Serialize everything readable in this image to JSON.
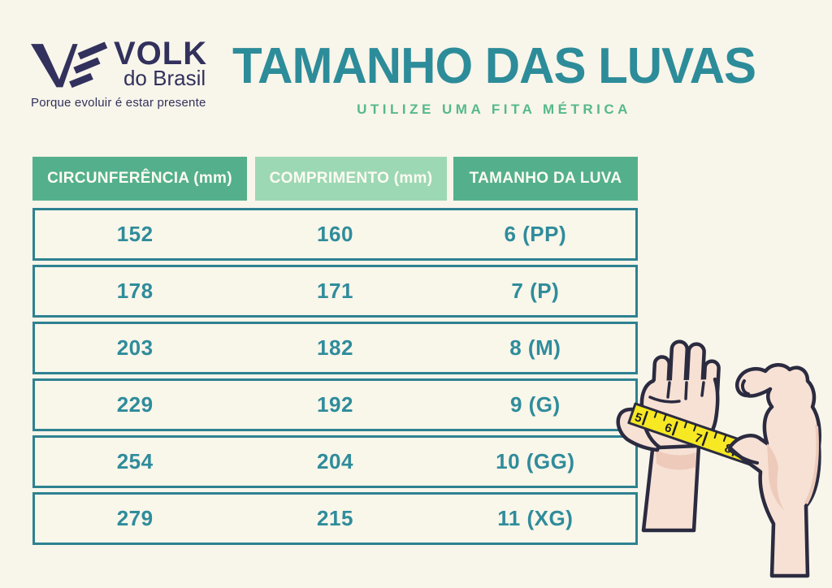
{
  "logo": {
    "brand": "VOLK",
    "brand_sub": "do Brasil",
    "tagline": "Porque evoluir é estar presente"
  },
  "header": {
    "title": "TAMANHO DAS LUVAS",
    "subtitle": "UTILIZE UMA FITA MÉTRICA"
  },
  "chart_data": {
    "type": "table",
    "title": "TAMANHO DAS LUVAS",
    "subtitle": "UTILIZE UMA FITA MÉTRICA",
    "columns": [
      "CIRCUNFERÊNCIA (mm)",
      "COMPRIMENTO (mm)",
      "TAMANHO DA LUVA"
    ],
    "rows": [
      [
        "152",
        "160",
        "6 (PP)"
      ],
      [
        "178",
        "171",
        "7 (P)"
      ],
      [
        "203",
        "182",
        "8 (M)"
      ],
      [
        "229",
        "192",
        "9 (G)"
      ],
      [
        "254",
        "204",
        "10 (GG)"
      ],
      [
        "279",
        "215",
        "11 (XG)"
      ]
    ]
  },
  "illustration": {
    "description": "two hands measuring palm circumference with a yellow tape measure",
    "tape_numbers": [
      "5",
      "6",
      "7",
      "8"
    ]
  },
  "colors": {
    "background": "#f8f5ea",
    "title_teal": "#2d8c99",
    "subtitle_green": "#55b98c",
    "header_green_dark": "#54b08c",
    "header_green_light": "#9dd8b4",
    "table_border_teal": "#2e8291",
    "cell_text_teal": "#2f8c9b",
    "logo_navy": "#32315d",
    "hand_outline": "#2b2b40",
    "skin": "#f7e1d5",
    "skin_shade": "#edcaba",
    "tape_yellow": "#f6e822"
  }
}
